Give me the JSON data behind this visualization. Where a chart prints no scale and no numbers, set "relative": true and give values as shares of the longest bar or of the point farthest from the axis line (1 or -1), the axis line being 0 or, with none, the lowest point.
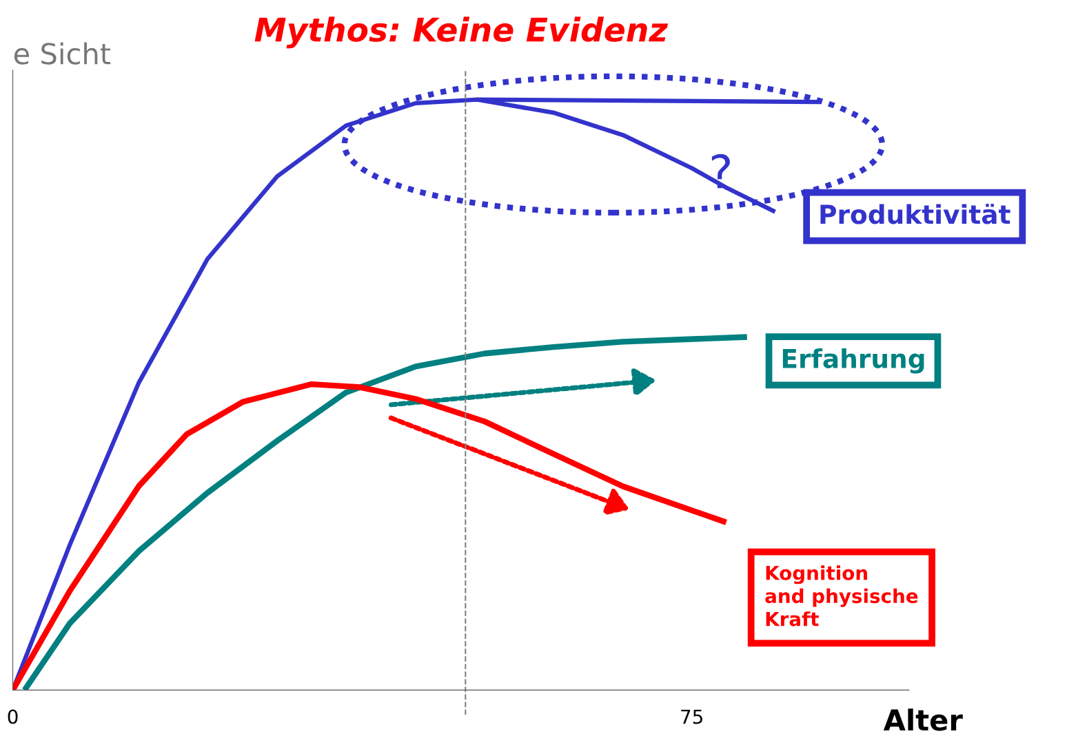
{
  "chart_data": {
    "type": "line",
    "title": "Mythos: Keine Evidenz",
    "ylabel": "e Sicht",
    "xlabel": "Alter",
    "relative": true,
    "xlim": [
      0,
      99
    ],
    "xticks": [
      0,
      75
    ],
    "grid": false,
    "marker": "none",
    "series": [
      {
        "name": "Produktivität",
        "color": "#3333cc",
        "x": [
          0,
          6.3,
          13.9,
          21.5,
          29.2,
          36.8,
          44.5,
          51.3,
          59.7,
          67.4,
          75,
          78.8,
          84.2
        ],
        "values": [
          0,
          0.246,
          0.52,
          0.73,
          0.87,
          0.956,
          0.994,
          1.0,
          0.978,
          0.94,
          0.884,
          0.851,
          0.81
        ]
      },
      {
        "color": "#3333cc",
        "x": [
          51.3,
          89.2
        ],
        "values": [
          1.0,
          0.996
        ]
      },
      {
        "name": "Erfahrung",
        "color": "#008080",
        "x": [
          1.3,
          6.3,
          13.9,
          21.5,
          29.2,
          36.8,
          44.5,
          52.1,
          59.7,
          67.4,
          81.1
        ],
        "values": [
          0,
          0.113,
          0.235,
          0.334,
          0.422,
          0.504,
          0.548,
          0.57,
          0.581,
          0.59,
          0.598
        ]
      },
      {
        "name": "Kognition\nand physische\nKraft",
        "color": "#ff0000",
        "x": [
          0,
          6.3,
          13.9,
          19.2,
          25.4,
          33,
          38.3,
          44.5,
          52.1,
          59.7,
          67.4,
          78.8
        ],
        "values": [
          0,
          0.168,
          0.345,
          0.433,
          0.488,
          0.518,
          0.513,
          0.493,
          0.455,
          0.4,
          0.345,
          0.284
        ]
      }
    ],
    "ref_lines": [
      {
        "axis": "x",
        "value": 50,
        "color": "#808080",
        "line_style": "dashed"
      }
    ],
    "annotations": [
      "?"
    ]
  }
}
